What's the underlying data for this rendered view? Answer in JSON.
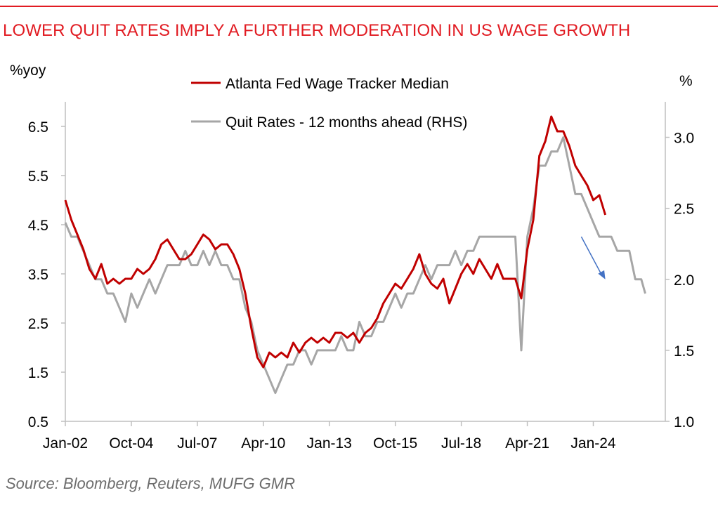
{
  "title": "LOWER QUIT RATES IMPLY A FURTHER MODERATION IN US WAGE GROWTH",
  "source": "Source: Bloomberg, Reuters, MUFG GMR",
  "colors": {
    "accent": "#e11b22",
    "series1": "#c00000",
    "series2": "#a6a6a6",
    "arrow": "#4472c4"
  },
  "chart_data": {
    "type": "line",
    "left_axis": {
      "unit_label": "%yoy",
      "range": [
        0.5,
        7.0
      ],
      "ticks": [
        0.5,
        1.5,
        2.5,
        3.5,
        4.5,
        5.5,
        6.5
      ],
      "tick_labels": [
        "0.5",
        "1.5",
        "2.5",
        "3.5",
        "4.5",
        "5.5",
        "6.5"
      ]
    },
    "right_axis": {
      "unit_label": "%",
      "range": [
        1.0,
        3.25
      ],
      "ticks": [
        1.0,
        1.5,
        2.0,
        2.5,
        3.0
      ],
      "tick_labels": [
        "1.0",
        "1.5",
        "2.0",
        "2.5",
        "3.0"
      ]
    },
    "x_axis": {
      "range": [
        "Jan-02",
        "Jan-27"
      ],
      "tick_labels": [
        "Jan-02",
        "Oct-04",
        "Jul-07",
        "Apr-10",
        "Jan-13",
        "Oct-15",
        "Jul-18",
        "Apr-21",
        "Jan-24"
      ],
      "tick_positions": [
        "2002-01",
        "2004-10",
        "2007-07",
        "2010-04",
        "2013-01",
        "2015-10",
        "2018-07",
        "2021-04",
        "2024-01"
      ]
    },
    "grid": false,
    "legend": {
      "placement": "top-center"
    },
    "annotations": [
      {
        "type": "arrow",
        "description": "downward trend arrow",
        "from": [
          "2023-07",
          2.3
        ],
        "to": [
          "2024-07",
          2.0
        ],
        "axis": "right"
      }
    ],
    "series": [
      {
        "name": "Atlanta Fed Wage Tracker Median",
        "axis": "left",
        "color": "#c00000",
        "points": [
          [
            "2002-01",
            5.0
          ],
          [
            "2002-04",
            4.6
          ],
          [
            "2002-07",
            4.3
          ],
          [
            "2002-10",
            4.0
          ],
          [
            "2003-01",
            3.6
          ],
          [
            "2003-04",
            3.4
          ],
          [
            "2003-07",
            3.7
          ],
          [
            "2003-10",
            3.3
          ],
          [
            "2004-01",
            3.4
          ],
          [
            "2004-04",
            3.3
          ],
          [
            "2004-07",
            3.4
          ],
          [
            "2004-10",
            3.4
          ],
          [
            "2005-01",
            3.6
          ],
          [
            "2005-04",
            3.5
          ],
          [
            "2005-07",
            3.6
          ],
          [
            "2005-10",
            3.8
          ],
          [
            "2006-01",
            4.1
          ],
          [
            "2006-04",
            4.2
          ],
          [
            "2006-07",
            4.0
          ],
          [
            "2006-10",
            3.8
          ],
          [
            "2007-01",
            3.8
          ],
          [
            "2007-04",
            3.9
          ],
          [
            "2007-07",
            4.1
          ],
          [
            "2007-10",
            4.3
          ],
          [
            "2008-01",
            4.2
          ],
          [
            "2008-04",
            4.0
          ],
          [
            "2008-07",
            4.1
          ],
          [
            "2008-10",
            4.1
          ],
          [
            "2009-01",
            3.9
          ],
          [
            "2009-04",
            3.6
          ],
          [
            "2009-07",
            3.1
          ],
          [
            "2009-10",
            2.4
          ],
          [
            "2010-01",
            1.8
          ],
          [
            "2010-04",
            1.6
          ],
          [
            "2010-07",
            1.9
          ],
          [
            "2010-10",
            1.8
          ],
          [
            "2011-01",
            1.9
          ],
          [
            "2011-04",
            1.8
          ],
          [
            "2011-07",
            2.1
          ],
          [
            "2011-10",
            1.9
          ],
          [
            "2012-01",
            2.1
          ],
          [
            "2012-04",
            2.2
          ],
          [
            "2012-07",
            2.1
          ],
          [
            "2012-10",
            2.2
          ],
          [
            "2013-01",
            2.1
          ],
          [
            "2013-04",
            2.3
          ],
          [
            "2013-07",
            2.3
          ],
          [
            "2013-10",
            2.2
          ],
          [
            "2014-01",
            2.3
          ],
          [
            "2014-04",
            2.1
          ],
          [
            "2014-07",
            2.3
          ],
          [
            "2014-10",
            2.4
          ],
          [
            "2015-01",
            2.6
          ],
          [
            "2015-04",
            2.9
          ],
          [
            "2015-07",
            3.1
          ],
          [
            "2015-10",
            3.3
          ],
          [
            "2016-01",
            3.2
          ],
          [
            "2016-04",
            3.4
          ],
          [
            "2016-07",
            3.6
          ],
          [
            "2016-10",
            3.9
          ],
          [
            "2017-01",
            3.5
          ],
          [
            "2017-04",
            3.3
          ],
          [
            "2017-07",
            3.2
          ],
          [
            "2017-10",
            3.4
          ],
          [
            "2018-01",
            2.9
          ],
          [
            "2018-04",
            3.2
          ],
          [
            "2018-07",
            3.5
          ],
          [
            "2018-10",
            3.7
          ],
          [
            "2019-01",
            3.5
          ],
          [
            "2019-04",
            3.8
          ],
          [
            "2019-07",
            3.6
          ],
          [
            "2019-10",
            3.4
          ],
          [
            "2020-01",
            3.7
          ],
          [
            "2020-04",
            3.4
          ],
          [
            "2020-07",
            3.4
          ],
          [
            "2020-10",
            3.4
          ],
          [
            "2021-01",
            3.0
          ],
          [
            "2021-04",
            4.0
          ],
          [
            "2021-07",
            4.6
          ],
          [
            "2021-10",
            5.9
          ],
          [
            "2022-01",
            6.2
          ],
          [
            "2022-04",
            6.7
          ],
          [
            "2022-07",
            6.4
          ],
          [
            "2022-10",
            6.4
          ],
          [
            "2023-01",
            6.1
          ],
          [
            "2023-04",
            5.7
          ],
          [
            "2023-07",
            5.5
          ],
          [
            "2023-10",
            5.3
          ],
          [
            "2024-01",
            5.0
          ],
          [
            "2024-04",
            5.1
          ],
          [
            "2024-07",
            4.7
          ]
        ]
      },
      {
        "name": "Quit Rates  - 12 months ahead (RHS)",
        "axis": "right",
        "color": "#a6a6a6",
        "points": [
          [
            "2002-01",
            2.4
          ],
          [
            "2002-04",
            2.3
          ],
          [
            "2002-07",
            2.3
          ],
          [
            "2002-10",
            2.2
          ],
          [
            "2003-01",
            2.1
          ],
          [
            "2003-04",
            2.0
          ],
          [
            "2003-07",
            2.0
          ],
          [
            "2003-10",
            1.9
          ],
          [
            "2004-01",
            1.9
          ],
          [
            "2004-04",
            1.8
          ],
          [
            "2004-07",
            1.7
          ],
          [
            "2004-10",
            1.9
          ],
          [
            "2005-01",
            1.8
          ],
          [
            "2005-04",
            1.9
          ],
          [
            "2005-07",
            2.0
          ],
          [
            "2005-10",
            1.9
          ],
          [
            "2006-01",
            2.0
          ],
          [
            "2006-04",
            2.1
          ],
          [
            "2006-07",
            2.1
          ],
          [
            "2006-10",
            2.1
          ],
          [
            "2007-01",
            2.2
          ],
          [
            "2007-04",
            2.1
          ],
          [
            "2007-07",
            2.1
          ],
          [
            "2007-10",
            2.2
          ],
          [
            "2008-01",
            2.1
          ],
          [
            "2008-04",
            2.2
          ],
          [
            "2008-07",
            2.1
          ],
          [
            "2008-10",
            2.1
          ],
          [
            "2009-01",
            2.0
          ],
          [
            "2009-04",
            2.0
          ],
          [
            "2009-07",
            1.8
          ],
          [
            "2009-10",
            1.7
          ],
          [
            "2010-01",
            1.5
          ],
          [
            "2010-04",
            1.4
          ],
          [
            "2010-07",
            1.3
          ],
          [
            "2010-10",
            1.2
          ],
          [
            "2011-01",
            1.3
          ],
          [
            "2011-04",
            1.4
          ],
          [
            "2011-07",
            1.4
          ],
          [
            "2011-10",
            1.5
          ],
          [
            "2012-01",
            1.5
          ],
          [
            "2012-04",
            1.4
          ],
          [
            "2012-07",
            1.5
          ],
          [
            "2012-10",
            1.5
          ],
          [
            "2013-01",
            1.5
          ],
          [
            "2013-04",
            1.5
          ],
          [
            "2013-07",
            1.6
          ],
          [
            "2013-10",
            1.5
          ],
          [
            "2014-01",
            1.5
          ],
          [
            "2014-04",
            1.7
          ],
          [
            "2014-07",
            1.6
          ],
          [
            "2014-10",
            1.6
          ],
          [
            "2015-01",
            1.7
          ],
          [
            "2015-04",
            1.7
          ],
          [
            "2015-07",
            1.8
          ],
          [
            "2015-10",
            1.9
          ],
          [
            "2016-01",
            1.8
          ],
          [
            "2016-04",
            1.9
          ],
          [
            "2016-07",
            1.9
          ],
          [
            "2016-10",
            2.0
          ],
          [
            "2017-01",
            2.1
          ],
          [
            "2017-04",
            2.0
          ],
          [
            "2017-07",
            2.1
          ],
          [
            "2017-10",
            2.1
          ],
          [
            "2018-01",
            2.1
          ],
          [
            "2018-04",
            2.2
          ],
          [
            "2018-07",
            2.1
          ],
          [
            "2018-10",
            2.2
          ],
          [
            "2019-01",
            2.2
          ],
          [
            "2019-04",
            2.3
          ],
          [
            "2019-07",
            2.3
          ],
          [
            "2019-10",
            2.3
          ],
          [
            "2020-01",
            2.3
          ],
          [
            "2020-04",
            2.3
          ],
          [
            "2020-07",
            2.3
          ],
          [
            "2020-10",
            2.3
          ],
          [
            "2021-01",
            1.5
          ],
          [
            "2021-04",
            2.3
          ],
          [
            "2021-07",
            2.5
          ],
          [
            "2021-10",
            2.8
          ],
          [
            "2022-01",
            2.8
          ],
          [
            "2022-04",
            2.9
          ],
          [
            "2022-07",
            2.9
          ],
          [
            "2022-10",
            3.0
          ],
          [
            "2023-01",
            2.8
          ],
          [
            "2023-04",
            2.6
          ],
          [
            "2023-07",
            2.6
          ],
          [
            "2023-10",
            2.5
          ],
          [
            "2024-01",
            2.4
          ],
          [
            "2024-04",
            2.3
          ],
          [
            "2024-07",
            2.3
          ],
          [
            "2024-10",
            2.3
          ],
          [
            "2025-01",
            2.2
          ],
          [
            "2025-04",
            2.2
          ],
          [
            "2025-07",
            2.2
          ],
          [
            "2025-10",
            2.0
          ],
          [
            "2026-01",
            2.0
          ],
          [
            "2026-03",
            1.9
          ]
        ]
      }
    ]
  }
}
